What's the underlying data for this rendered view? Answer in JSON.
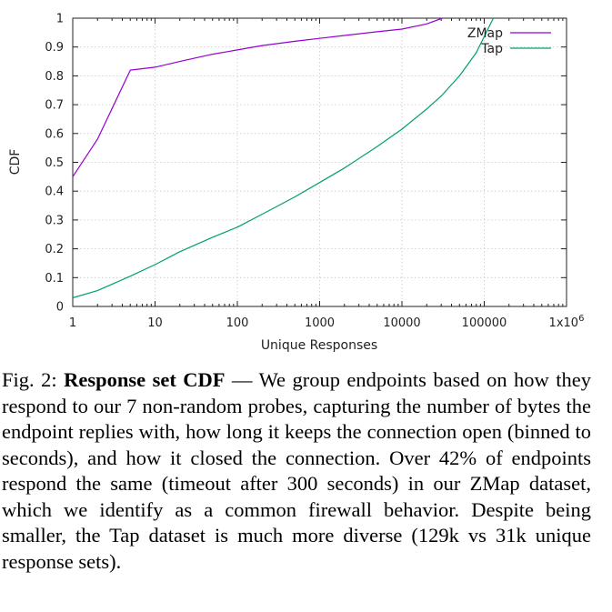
{
  "chart_data": {
    "type": "line",
    "xlabel": "Unique Responses",
    "ylabel": "CDF",
    "x_scale": "log",
    "xlim": [
      1,
      1000000
    ],
    "ylim": [
      0,
      1
    ],
    "x_ticks": [
      1,
      10,
      100,
      1000,
      10000,
      100000,
      1000000
    ],
    "x_tick_labels": [
      "1",
      "10",
      "100",
      "1000",
      "10000",
      "100000",
      "1x10^6"
    ],
    "y_ticks": [
      0,
      0.1,
      0.2,
      0.3,
      0.4,
      0.5,
      0.6,
      0.7,
      0.8,
      0.9,
      1
    ],
    "y_tick_labels": [
      "0",
      "0.1",
      "0.2",
      "0.3",
      "0.4",
      "0.5",
      "0.6",
      "0.7",
      "0.8",
      "0.9",
      "1"
    ],
    "grid": true,
    "legend_position": "top-right",
    "series": [
      {
        "name": "ZMap",
        "color": "#9400d3",
        "x": [
          1,
          2,
          5,
          10,
          20,
          50,
          100,
          200,
          500,
          1000,
          2000,
          5000,
          10000,
          20000,
          31000
        ],
        "y": [
          0.45,
          0.58,
          0.82,
          0.83,
          0.85,
          0.875,
          0.89,
          0.905,
          0.92,
          0.93,
          0.94,
          0.953,
          0.962,
          0.98,
          1.0
        ]
      },
      {
        "name": "Tap",
        "color": "#009e73",
        "x": [
          1,
          2,
          5,
          10,
          20,
          50,
          100,
          200,
          500,
          1000,
          2000,
          5000,
          10000,
          20000,
          30000,
          50000,
          80000,
          129000
        ],
        "y": [
          0.03,
          0.055,
          0.105,
          0.145,
          0.19,
          0.24,
          0.275,
          0.32,
          0.38,
          0.43,
          0.48,
          0.555,
          0.615,
          0.685,
          0.73,
          0.8,
          0.88,
          1.0
        ]
      }
    ]
  },
  "caption": {
    "label": "Fig. 2: ",
    "title": "Response set CDF",
    "dash": " — ",
    "body": "We group endpoints based on how they respond to our 7 non-random probes, capturing the number of bytes the endpoint replies with, how long it keeps the connection open (binned to seconds), and how it closed the connection. Over 42% of endpoints respond the same (timeout after 300 seconds) in our ZMap dataset, which we identify as a common firewall behavior. Despite being smaller, the Tap dataset is much more diverse (129k vs 31k unique response sets)."
  }
}
